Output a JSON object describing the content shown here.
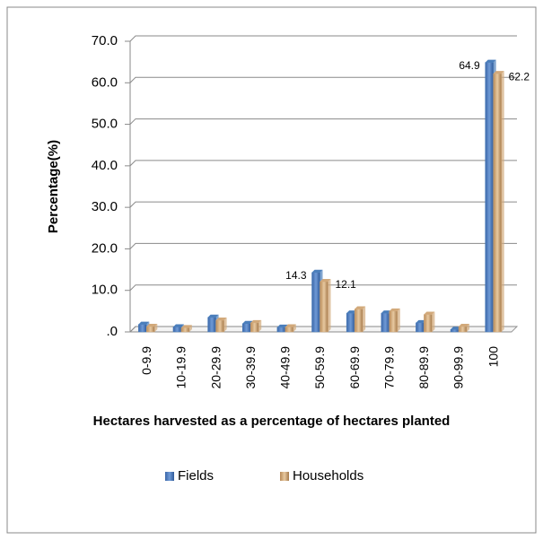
{
  "chart_data": {
    "type": "bar",
    "x_label": "Hectares harvested as a percentage of hectares planted",
    "y_label": "Percentage(%)",
    "categories": [
      "0-9.9",
      "10-19.9",
      "20-29.9",
      "30-39.9",
      "40-49.9",
      "50-59.9",
      "60-69.9",
      "70-79.9",
      "80-89.9",
      "90-99.9",
      "100"
    ],
    "series": [
      {
        "name": "Fields",
        "color": "#4a7ebb",
        "values": [
          1.8,
          1.2,
          3.5,
          2.0,
          1.1,
          14.3,
          4.5,
          4.5,
          2.2,
          0.6,
          64.9
        ],
        "value_labels": [
          null,
          null,
          null,
          null,
          null,
          "14.3",
          null,
          null,
          null,
          null,
          "64.9"
        ]
      },
      {
        "name": "Households",
        "color": "#d2a97a",
        "values": [
          1.3,
          1.0,
          2.8,
          2.2,
          1.2,
          12.1,
          5.5,
          5.0,
          4.2,
          1.3,
          62.2
        ],
        "value_labels": [
          null,
          null,
          null,
          null,
          null,
          "12.1",
          null,
          null,
          null,
          null,
          "62.2"
        ]
      }
    ],
    "ylim": [
      0,
      70
    ],
    "yticks": [
      {
        "value": 0,
        "label": ".0"
      },
      {
        "value": 10,
        "label": "10.0"
      },
      {
        "value": 20,
        "label": "20.0"
      },
      {
        "value": 30,
        "label": "30.0"
      },
      {
        "value": 40,
        "label": "40.0"
      },
      {
        "value": 50,
        "label": "50.0"
      },
      {
        "value": 60,
        "label": "60.0"
      },
      {
        "value": 70,
        "label": "70.0"
      }
    ],
    "grid": true,
    "legend": "bottom"
  }
}
